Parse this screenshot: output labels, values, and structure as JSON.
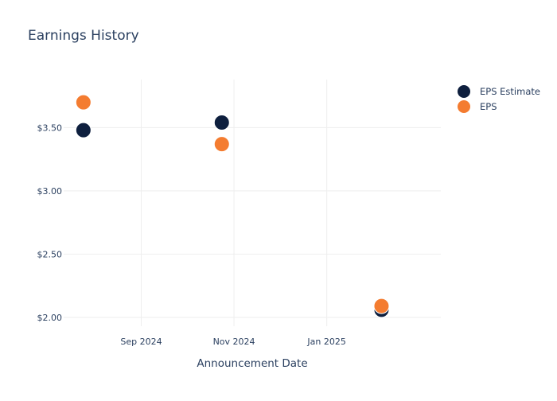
{
  "chart_data": {
    "type": "scatter",
    "title": "Earnings History",
    "xlabel": "Announcement Date",
    "ylabel": "",
    "x_ticks": [
      {
        "date": "2024-09-01",
        "label": "Sep 2024"
      },
      {
        "date": "2024-11-01",
        "label": "Nov 2024"
      },
      {
        "date": "2025-01-01",
        "label": "Jan 2025"
      }
    ],
    "y_ticks": [
      {
        "value": 2.0,
        "label": "$2.00"
      },
      {
        "value": 2.5,
        "label": "$2.50"
      },
      {
        "value": 3.0,
        "label": "$3.00"
      },
      {
        "value": 3.5,
        "label": "$3.50"
      }
    ],
    "xlim": [
      "2024-07-12",
      "2025-03-17"
    ],
    "ylim": [
      1.93,
      3.88
    ],
    "grid": true,
    "legend_position": "top-right",
    "series": [
      {
        "name": "EPS Estimate",
        "color": "#0e1f3e",
        "points": [
          {
            "x": "2024-07-25",
            "y": 3.48
          },
          {
            "x": "2024-10-24",
            "y": 3.54
          },
          {
            "x": "2025-02-06",
            "y": 2.06
          }
        ]
      },
      {
        "name": "EPS",
        "color": "#f47c30",
        "points": [
          {
            "x": "2024-07-25",
            "y": 3.7
          },
          {
            "x": "2024-10-24",
            "y": 3.37
          },
          {
            "x": "2025-02-06",
            "y": 2.09
          }
        ]
      }
    ]
  }
}
